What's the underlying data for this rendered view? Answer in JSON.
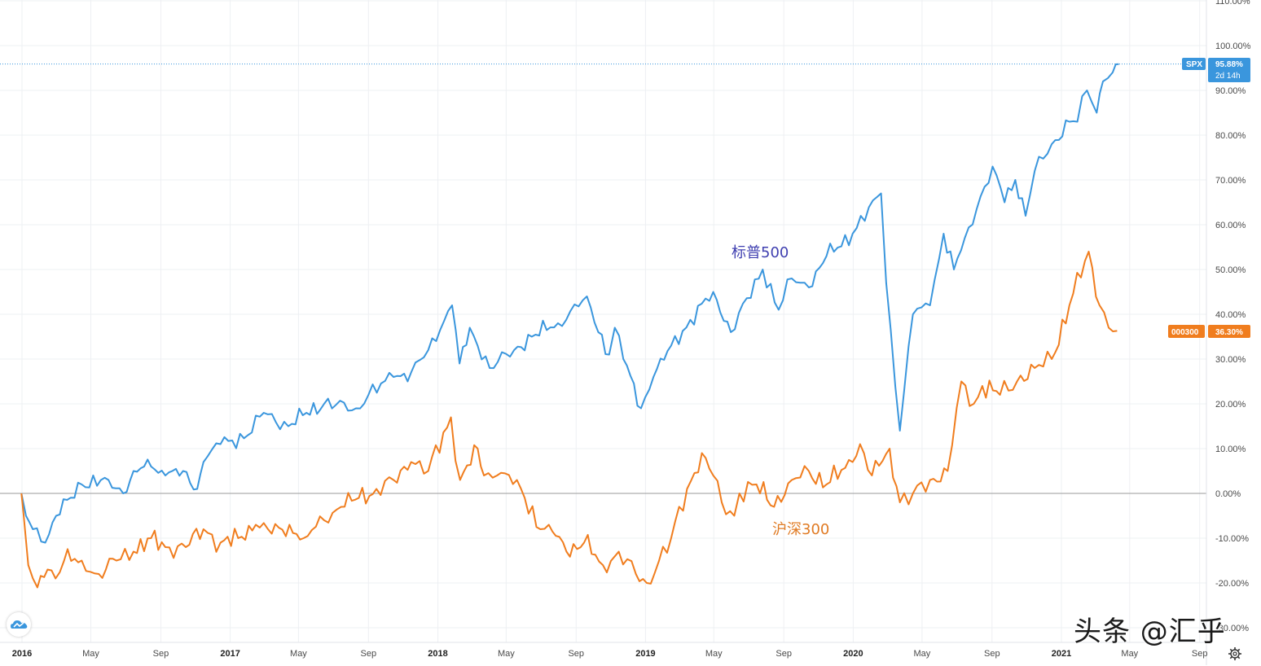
{
  "colors": {
    "spx": "#3a96dd",
    "csi": "#f07d1e",
    "grid": "#eef0f3",
    "axis_text": "#4a4a4a",
    "spx_label_text": "#3f3fb0",
    "csi_label_text": "#e07b24"
  },
  "price_scale": {
    "tick_labels": [
      "110.00%",
      "100.00%",
      "90.00%",
      "80.00%",
      "70.00%",
      "60.00%",
      "50.00%",
      "40.00%",
      "30.00%",
      "20.00%",
      "10.00%",
      "0.00%",
      "-10.00%",
      "-20.00%",
      "-30.00%"
    ]
  },
  "time_scale": {
    "tick_labels": [
      "2016",
      "May",
      "Sep",
      "2017",
      "May",
      "Sep",
      "2018",
      "May",
      "Sep",
      "2019",
      "May",
      "Sep",
      "2020",
      "May",
      "Sep",
      "2021",
      "May",
      "Sep"
    ]
  },
  "tags": {
    "spx_symbol": "SPX",
    "spx_value": "95.88%",
    "spx_countdown": "2d 14h",
    "csi_symbol": "000300",
    "csi_value": "36.30%"
  },
  "labels": {
    "spx_series": "标普500",
    "csi_series": "沪深300"
  },
  "watermark": "头条 @汇乎",
  "icons": {
    "logo": "tradingview-cloud-icon",
    "settings": "gear-icon"
  },
  "chart_data": {
    "type": "line",
    "title": "",
    "xlabel": "",
    "ylabel": "",
    "y_unit": "%",
    "ylim": [
      -30,
      110
    ],
    "xlim": [
      "2016-01-01",
      "2021-09-30"
    ],
    "grid": true,
    "legend": "none",
    "x_tick_labels": [
      "2016",
      "May",
      "Sep",
      "2017",
      "May",
      "Sep",
      "2018",
      "May",
      "Sep",
      "2019",
      "May",
      "Sep",
      "2020",
      "May",
      "Sep",
      "2021",
      "May",
      "Sep"
    ],
    "series": [
      {
        "name": "SPX",
        "color": "#3a96dd",
        "points": [
          [
            "2015-12-31",
            0
          ],
          [
            "2016-01-08",
            -5
          ],
          [
            "2016-01-20",
            -8
          ],
          [
            "2016-02-11",
            -11
          ],
          [
            "2016-03-01",
            -5
          ],
          [
            "2016-04-15",
            2
          ],
          [
            "2016-06-01",
            3
          ],
          [
            "2016-06-27",
            0
          ],
          [
            "2016-07-15",
            5
          ],
          [
            "2016-08-15",
            6
          ],
          [
            "2016-09-09",
            4
          ],
          [
            "2016-10-10",
            5
          ],
          [
            "2016-11-04",
            1
          ],
          [
            "2016-11-15",
            7
          ],
          [
            "2016-12-15",
            11
          ],
          [
            "2017-02-01",
            13
          ],
          [
            "2017-03-01",
            18
          ],
          [
            "2017-04-13",
            15
          ],
          [
            "2017-05-15",
            18
          ],
          [
            "2017-06-15",
            20
          ],
          [
            "2017-08-10",
            19
          ],
          [
            "2017-09-01",
            22
          ],
          [
            "2017-10-15",
            26
          ],
          [
            "2017-11-15",
            27
          ],
          [
            "2017-12-15",
            32
          ],
          [
            "2018-01-26",
            42
          ],
          [
            "2018-02-08",
            29
          ],
          [
            "2018-02-26",
            37
          ],
          [
            "2018-04-02",
            28
          ],
          [
            "2018-05-15",
            32
          ],
          [
            "2018-06-15",
            35
          ],
          [
            "2018-07-31",
            38
          ],
          [
            "2018-09-20",
            44
          ],
          [
            "2018-10-10",
            36
          ],
          [
            "2018-10-29",
            31
          ],
          [
            "2018-11-08",
            37
          ],
          [
            "2018-11-23",
            30
          ],
          [
            "2018-12-24",
            19
          ],
          [
            "2019-01-15",
            26
          ],
          [
            "2019-02-15",
            33
          ],
          [
            "2019-04-30",
            45
          ],
          [
            "2019-05-31",
            36
          ],
          [
            "2019-07-26",
            50
          ],
          [
            "2019-08-23",
            41
          ],
          [
            "2019-09-15",
            48
          ],
          [
            "2019-10-15",
            46
          ],
          [
            "2019-11-15",
            53
          ],
          [
            "2019-12-31",
            58
          ],
          [
            "2020-02-19",
            67
          ],
          [
            "2020-02-28",
            47
          ],
          [
            "2020-03-23",
            14
          ],
          [
            "2020-04-15",
            40
          ],
          [
            "2020-05-15",
            42
          ],
          [
            "2020-06-08",
            58
          ],
          [
            "2020-06-26",
            50
          ],
          [
            "2020-07-15",
            57
          ],
          [
            "2020-09-02",
            73
          ],
          [
            "2020-09-23",
            65
          ],
          [
            "2020-10-12",
            70
          ],
          [
            "2020-10-30",
            62
          ],
          [
            "2020-11-15",
            72
          ],
          [
            "2020-12-15",
            78
          ],
          [
            "2021-01-15",
            83
          ],
          [
            "2021-01-29",
            83
          ],
          [
            "2021-02-15",
            90
          ],
          [
            "2021-03-04",
            85
          ],
          [
            "2021-03-15",
            92
          ],
          [
            "2021-04-01",
            94
          ],
          [
            "2021-04-12",
            95.88
          ]
        ]
      },
      {
        "name": "000300",
        "color": "#f07d1e",
        "points": [
          [
            "2015-12-31",
            0
          ],
          [
            "2016-01-04",
            -5
          ],
          [
            "2016-01-12",
            -16
          ],
          [
            "2016-01-28",
            -21
          ],
          [
            "2016-02-15",
            -17
          ],
          [
            "2016-02-29",
            -19
          ],
          [
            "2016-03-15",
            -15
          ],
          [
            "2016-04-15",
            -15
          ],
          [
            "2016-05-15",
            -18
          ],
          [
            "2016-06-15",
            -15
          ],
          [
            "2016-07-15",
            -13
          ],
          [
            "2016-08-15",
            -10
          ],
          [
            "2016-09-09",
            -12
          ],
          [
            "2016-10-15",
            -12
          ],
          [
            "2016-11-15",
            -8
          ],
          [
            "2016-12-15",
            -11
          ],
          [
            "2017-01-15",
            -10
          ],
          [
            "2017-02-15",
            -7
          ],
          [
            "2017-03-15",
            -9
          ],
          [
            "2017-04-15",
            -7
          ],
          [
            "2017-05-10",
            -10
          ],
          [
            "2017-06-15",
            -6
          ],
          [
            "2017-07-15",
            -3
          ],
          [
            "2017-08-15",
            -1
          ],
          [
            "2017-09-15",
            1
          ],
          [
            "2017-10-15",
            3
          ],
          [
            "2017-11-15",
            7
          ],
          [
            "2017-12-15",
            5
          ],
          [
            "2018-01-24",
            17
          ],
          [
            "2018-02-09",
            3
          ],
          [
            "2018-03-12",
            10
          ],
          [
            "2018-03-23",
            4
          ],
          [
            "2018-04-15",
            4
          ],
          [
            "2018-05-20",
            3
          ],
          [
            "2018-06-30",
            -8
          ],
          [
            "2018-07-15",
            -7
          ],
          [
            "2018-08-15",
            -13
          ],
          [
            "2018-09-15",
            -11
          ],
          [
            "2018-10-18",
            -16
          ],
          [
            "2018-11-15",
            -13
          ],
          [
            "2018-12-15",
            -18
          ],
          [
            "2019-01-03",
            -20
          ],
          [
            "2019-02-15",
            -10
          ],
          [
            "2019-03-15",
            1
          ],
          [
            "2019-04-10",
            9
          ],
          [
            "2019-04-30",
            4
          ],
          [
            "2019-05-15",
            -2
          ],
          [
            "2019-06-06",
            -5
          ],
          [
            "2019-06-15",
            0
          ],
          [
            "2019-07-15",
            2
          ],
          [
            "2019-08-15",
            -3
          ],
          [
            "2019-09-15",
            3
          ],
          [
            "2019-10-15",
            5
          ],
          [
            "2019-11-15",
            2
          ],
          [
            "2019-12-31",
            7
          ],
          [
            "2020-01-13",
            11
          ],
          [
            "2020-02-03",
            4
          ],
          [
            "2020-03-05",
            10
          ],
          [
            "2020-03-23",
            -2
          ],
          [
            "2020-04-15",
            0
          ],
          [
            "2020-05-15",
            3
          ],
          [
            "2020-06-15",
            5
          ],
          [
            "2020-07-09",
            25
          ],
          [
            "2020-07-31",
            20
          ],
          [
            "2020-08-15",
            24
          ],
          [
            "2020-09-15",
            22
          ],
          [
            "2020-10-15",
            25
          ],
          [
            "2020-11-15",
            28
          ],
          [
            "2020-12-15",
            30
          ],
          [
            "2021-01-15",
            42
          ],
          [
            "2021-02-18",
            54
          ],
          [
            "2021-03-09",
            42
          ],
          [
            "2021-03-25",
            37
          ],
          [
            "2021-04-09",
            36.3
          ]
        ]
      }
    ]
  }
}
